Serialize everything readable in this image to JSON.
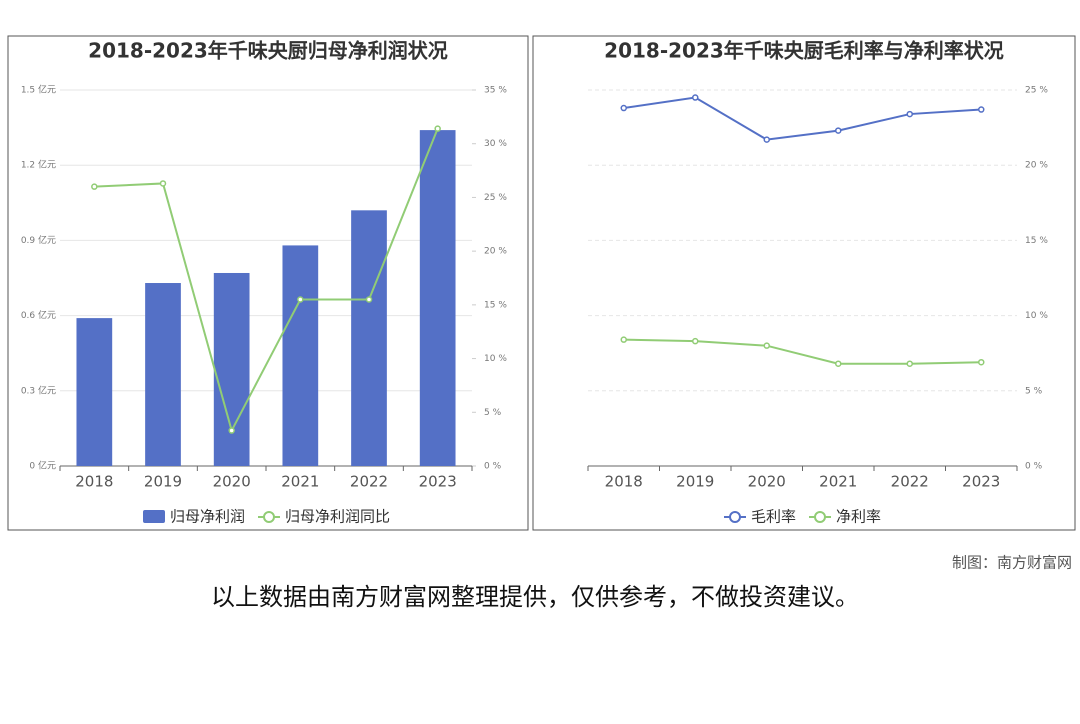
{
  "chart_data": [
    {
      "type": "combo",
      "title": "2018-2023年千味央厨归母净利润状况",
      "categories": [
        "2018",
        "2019",
        "2020",
        "2021",
        "2022",
        "2023"
      ],
      "series": [
        {
          "name": "归母净利润",
          "type": "bar",
          "color": "#5470c6",
          "values": [
            0.59,
            0.73,
            0.77,
            0.88,
            1.02,
            1.34
          ]
        },
        {
          "name": "归母净利润同比",
          "type": "line",
          "axis": "y2",
          "color": "#91cc75",
          "values": [
            26.0,
            26.3,
            3.3,
            15.5,
            15.5,
            31.4
          ]
        }
      ],
      "ylim": [
        0,
        1.5
      ],
      "yticks": [
        {
          "value": 0,
          "label": "0 亿元"
        },
        {
          "value": 0.3,
          "label": "0.3 亿元"
        },
        {
          "value": 0.6,
          "label": "0.6 亿元"
        },
        {
          "value": 0.9,
          "label": "0.9 亿元"
        },
        {
          "value": 1.2,
          "label": "1.2 亿元"
        },
        {
          "value": 1.5,
          "label": "1.5 亿元"
        }
      ],
      "y2lim": [
        0,
        35
      ],
      "y2ticks": [
        {
          "value": 0,
          "label": "0 %"
        },
        {
          "value": 5,
          "label": "5 %"
        },
        {
          "value": 10,
          "label": "10 %"
        },
        {
          "value": 15,
          "label": "15 %"
        },
        {
          "value": 20,
          "label": "20 %"
        },
        {
          "value": 25,
          "label": "25 %"
        },
        {
          "value": 30,
          "label": "30 %"
        },
        {
          "value": 35,
          "label": "35 %"
        }
      ],
      "grid": true,
      "legend": "bottom"
    },
    {
      "type": "line",
      "title": "2018-2023年千味央厨毛利率与净利率状况",
      "categories": [
        "2018",
        "2019",
        "2020",
        "2021",
        "2022",
        "2023"
      ],
      "series": [
        {
          "name": "毛利率",
          "type": "line",
          "color": "#5470c6",
          "values": [
            23.8,
            24.5,
            21.7,
            22.3,
            23.4,
            23.7
          ]
        },
        {
          "name": "净利率",
          "type": "line",
          "color": "#91cc75",
          "values": [
            8.4,
            8.3,
            8.0,
            6.8,
            6.8,
            6.9
          ]
        }
      ],
      "ylim": [
        0,
        25
      ],
      "yticks": [
        {
          "value": 0,
          "label": "0 %"
        },
        {
          "value": 5,
          "label": "5 %"
        },
        {
          "value": 10,
          "label": "10 %"
        },
        {
          "value": 15,
          "label": "15 %"
        },
        {
          "value": 20,
          "label": "20 %"
        },
        {
          "value": 25,
          "label": "25 %"
        }
      ],
      "y_axis_position": "right",
      "grid": true,
      "legend": "bottom"
    }
  ],
  "credit": "制图：南方财富网",
  "disclaimer": "以上数据由南方财富网整理提供，仅供参考，不做投资建议。"
}
